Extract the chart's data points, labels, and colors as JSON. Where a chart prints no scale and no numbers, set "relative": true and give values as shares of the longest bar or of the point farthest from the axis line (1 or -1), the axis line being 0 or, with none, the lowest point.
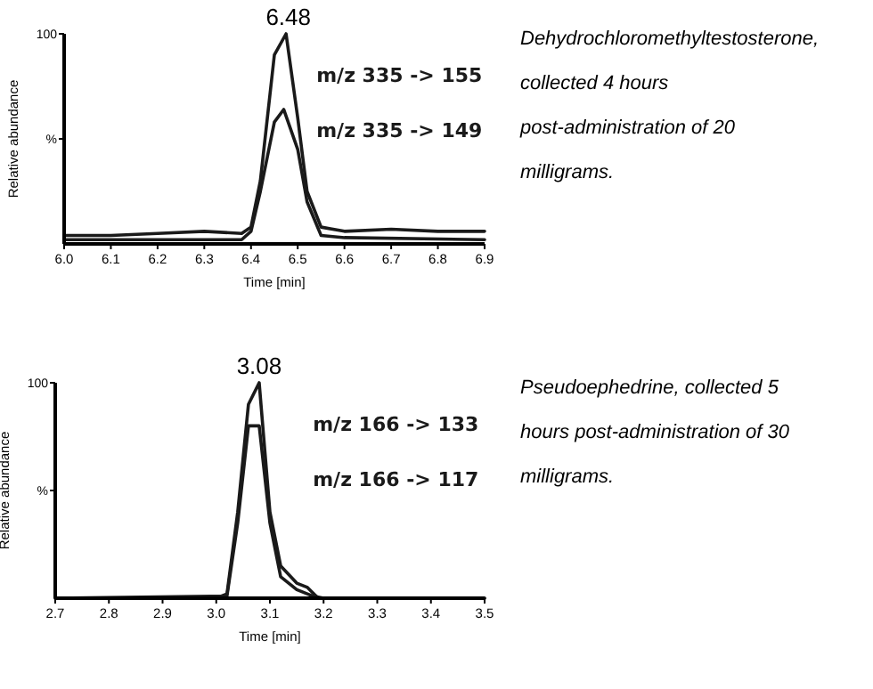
{
  "chart_data": [
    {
      "type": "line",
      "relative": true,
      "xlabel": "Time [min]",
      "ylabel": "Relative abundance",
      "xlim": [
        6.0,
        6.9
      ],
      "xticks": [
        {
          "value": 6.0,
          "label": "6.0"
        },
        6.1,
        6.2,
        6.3,
        6.4,
        6.5,
        6.6,
        6.7,
        6.8,
        6.9
      ],
      "legend": false,
      "line_style": "solid",
      "annotations": [
        {
          "text": "6.48",
          "x": 6.48,
          "y": 1
        },
        "100",
        "%",
        "Dehydrochloromethyltestosterone, collected 4 hours post-administration of 20 milligrams."
      ],
      "series": [
        {
          "name": "m/z 335 -> 155",
          "color": "#1a1a1a",
          "x": [
            6.0,
            6.1,
            6.2,
            6.3,
            6.38,
            6.4,
            6.42,
            6.45,
            6.475,
            6.5,
            6.52,
            6.55,
            6.6,
            6.7,
            6.8,
            6.9
          ],
          "values": [
            0.04,
            0.04,
            0.05,
            0.06,
            0.05,
            0.08,
            0.3,
            0.9,
            1,
            0.6,
            0.25,
            0.08,
            0.06,
            0.07,
            0.06,
            0.06
          ]
        },
        {
          "name": "m/z 335 -> 149",
          "color": "#1a1a1a",
          "x": [
            6.0,
            6.2,
            6.38,
            6.4,
            6.42,
            6.45,
            6.47,
            6.5,
            6.52,
            6.55,
            6.6,
            6.9
          ],
          "values": [
            0.02,
            0.02,
            0.02,
            0.06,
            0.25,
            0.58,
            0.64,
            0.45,
            0.2,
            0.04,
            0.03,
            0.02
          ]
        }
      ]
    },
    {
      "type": "line",
      "relative": true,
      "xlabel": "Time [min]",
      "ylabel": "Relative abundance",
      "xlim": [
        2.7,
        3.5
      ],
      "xticks": [
        2.7,
        2.8,
        2.9,
        {
          "value": 3.0,
          "label": "3.0"
        },
        3.1,
        3.2,
        3.3,
        3.4,
        3.5
      ],
      "legend": false,
      "line_style": "solid",
      "annotations": [
        {
          "text": "3.08",
          "x": 3.08,
          "y": 1
        },
        "100",
        "%",
        "Pseudoephedrine, collected 5 hours post-administration of 30 milligrams."
      ],
      "series": [
        {
          "name": "m/z 166 -> 133",
          "color": "#1a1a1a",
          "x": [
            2.7,
            3.0,
            3.02,
            3.04,
            3.06,
            3.08,
            3.1,
            3.12,
            3.15,
            3.17,
            3.19,
            3.5
          ],
          "values": [
            0,
            0,
            0.02,
            0.4,
            0.9,
            1,
            0.4,
            0.15,
            0.07,
            0.05,
            0,
            0
          ]
        },
        {
          "name": "m/z 166 -> 117",
          "color": "#1a1a1a",
          "x": [
            2.7,
            3.02,
            3.04,
            3.06,
            3.08,
            3.1,
            3.12,
            3.15,
            3.18,
            3.2,
            3.5
          ],
          "values": [
            0,
            0.01,
            0.35,
            0.8,
            0.8,
            0.35,
            0.1,
            0.04,
            0.01,
            0,
            0
          ]
        }
      ]
    }
  ]
}
